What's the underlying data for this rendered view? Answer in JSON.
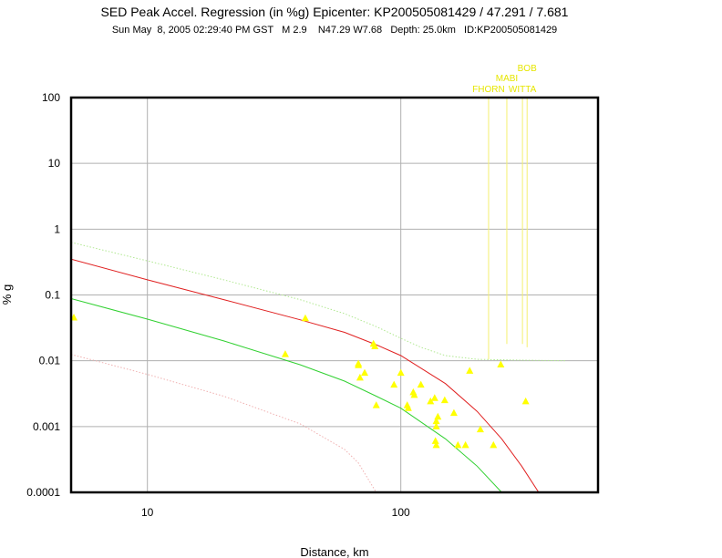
{
  "chart_data": {
    "type": "scatter",
    "title": "SED Peak Accel. Regression (in %g) Epicenter: KP200505081429 / 47.291 / 7.681",
    "subtitle": "Sun May  8, 2005 02:29:40 PM GST   M 2.9    N47.29 W7.68   Depth: 25.0km   ID:KP200505081429",
    "xlabel": "Distance, km",
    "ylabel": "% g",
    "xscale": "log",
    "yscale": "log",
    "xlim": [
      5,
      600
    ],
    "ylim": [
      0.0001,
      100
    ],
    "grid": true,
    "x_ticks": [
      {
        "value": 10,
        "label": "10"
      },
      {
        "value": 100,
        "label": "100"
      }
    ],
    "y_ticks": [
      {
        "value": 100,
        "label": "100"
      },
      {
        "value": 10,
        "label": "10"
      },
      {
        "value": 1,
        "label": "1"
      },
      {
        "value": 0.1,
        "label": "0.1"
      },
      {
        "value": 0.01,
        "label": "0.01"
      },
      {
        "value": 0.001,
        "label": "0.001"
      },
      {
        "value": 0.0001,
        "label": "0.0001"
      }
    ],
    "observations": [
      {
        "x": 5.0,
        "y": 0.045
      },
      {
        "x": 35,
        "y": 0.0125
      },
      {
        "x": 42,
        "y": 0.044
      },
      {
        "x": 68,
        "y": 0.009
      },
      {
        "x": 68,
        "y": 0.0085
      },
      {
        "x": 69,
        "y": 0.0055
      },
      {
        "x": 72,
        "y": 0.0065
      },
      {
        "x": 78,
        "y": 0.018
      },
      {
        "x": 79,
        "y": 0.0165
      },
      {
        "x": 80,
        "y": 0.0021
      },
      {
        "x": 94,
        "y": 0.0043
      },
      {
        "x": 100,
        "y": 0.0065
      },
      {
        "x": 106,
        "y": 0.0021
      },
      {
        "x": 107,
        "y": 0.0019
      },
      {
        "x": 112,
        "y": 0.0033
      },
      {
        "x": 113,
        "y": 0.003
      },
      {
        "x": 120,
        "y": 0.0043
      },
      {
        "x": 131,
        "y": 0.0024
      },
      {
        "x": 136,
        "y": 0.0027
      },
      {
        "x": 138,
        "y": 0.0012
      },
      {
        "x": 138,
        "y": 0.001
      },
      {
        "x": 140,
        "y": 0.0014
      },
      {
        "x": 137,
        "y": 0.0006
      },
      {
        "x": 138,
        "y": 0.00052
      },
      {
        "x": 149,
        "y": 0.0025
      },
      {
        "x": 162,
        "y": 0.0016
      },
      {
        "x": 168,
        "y": 0.00052
      },
      {
        "x": 180,
        "y": 0.00052
      },
      {
        "x": 187,
        "y": 0.007
      },
      {
        "x": 206,
        "y": 0.0009
      },
      {
        "x": 232,
        "y": 0.00052
      },
      {
        "x": 248,
        "y": 0.0087
      },
      {
        "x": 311,
        "y": 0.0024
      }
    ],
    "regression_lines": [
      {
        "color": "#e02020",
        "style": "solid",
        "x": [
          5,
          10,
          20,
          40,
          60,
          80,
          100,
          150,
          200,
          250,
          300,
          350
        ],
        "y": [
          0.35,
          0.17,
          0.085,
          0.042,
          0.027,
          0.0175,
          0.012,
          0.0045,
          0.0017,
          0.00065,
          0.00025,
          0.0001
        ]
      },
      {
        "color": "#30d030",
        "style": "solid",
        "x": [
          5,
          10,
          20,
          40,
          60,
          80,
          100,
          150,
          200,
          250
        ],
        "y": [
          0.088,
          0.043,
          0.02,
          0.0087,
          0.0049,
          0.0029,
          0.0019,
          0.00065,
          0.00025,
          0.0001
        ]
      },
      {
        "color": "#b0e890",
        "style": "dotted",
        "x": [
          5,
          10,
          20,
          40,
          60,
          80,
          100,
          120,
          150,
          200,
          300,
          450
        ],
        "y": [
          0.63,
          0.33,
          0.17,
          0.085,
          0.052,
          0.033,
          0.022,
          0.016,
          0.012,
          0.0105,
          0.0102,
          0.01
        ]
      },
      {
        "color": "#f0b0b0",
        "style": "dotted",
        "x": [
          5,
          10,
          20,
          40,
          60,
          68,
          80
        ],
        "y": [
          0.0125,
          0.0062,
          0.0029,
          0.0011,
          0.00045,
          0.00028,
          0.0001
        ]
      }
    ],
    "stations": [
      {
        "label": "FHORN",
        "x": 222,
        "y_top": 100,
        "y_bottom": 0.0105
      },
      {
        "label": "MABI",
        "x": 262,
        "y_top": 100,
        "y_bottom": 0.018
      },
      {
        "label": "WITTA",
        "x": 302,
        "y_top": 100,
        "y_bottom": 0.018
      },
      {
        "label": "BOB",
        "x": 315,
        "y_top": 100,
        "y_bottom": 0.016
      }
    ],
    "colors": {
      "marker": "#ffff00",
      "station_line": "#f4f070",
      "station_label": "#e6e600",
      "grid": "#b0b0b0"
    }
  }
}
